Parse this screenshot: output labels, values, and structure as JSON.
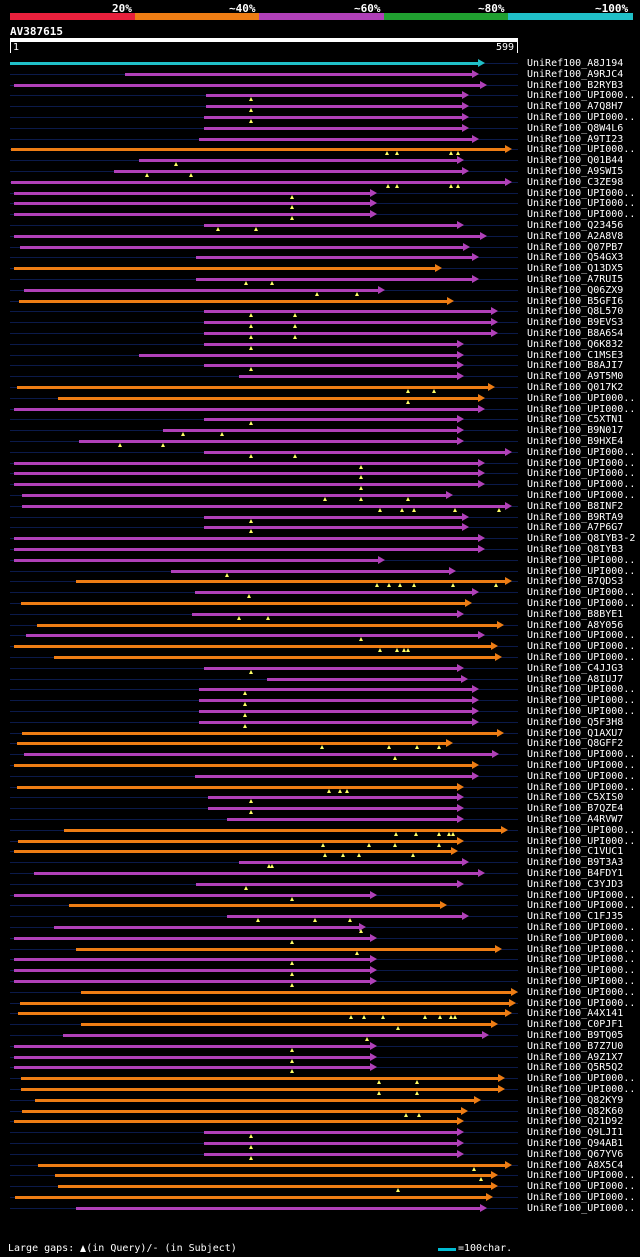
{
  "colors": {
    "red": "#e8203c",
    "orange": "#ee7d14",
    "purple": "#b040b8",
    "green": "#20a030",
    "cyan": "#20c0c8",
    "gap": "#ffff66",
    "axis": "#0b1a4a"
  },
  "scale": {
    "labels": [
      "20%",
      "~40%",
      "~60%",
      "~80%",
      "~100%"
    ],
    "colors": [
      "#e8203c",
      "#ee7d14",
      "#b040b8",
      "#20a030",
      "#20c0c8"
    ]
  },
  "query": {
    "name": "AV387615",
    "start": "1",
    "end": "599",
    "length": 599
  },
  "alignments": [
    {
      "label": "UniRef100_A8J194",
      "c": "cyan",
      "s": 1,
      "e": 560,
      "g": []
    },
    {
      "label": "UniRef100_A9RJC4",
      "c": "purple",
      "s": 136,
      "e": 553,
      "g": []
    },
    {
      "label": "UniRef100_B2RYB3",
      "c": "purple",
      "s": 6,
      "e": 563,
      "g": []
    },
    {
      "label": "UniRef100_UPI000..",
      "c": "purple",
      "s": 232,
      "e": 541,
      "g": [
        285
      ]
    },
    {
      "label": "UniRef100_A7Q8H7",
      "c": "purple",
      "s": 232,
      "e": 541,
      "g": [
        285
      ]
    },
    {
      "label": "UniRef100_UPI000..",
      "c": "purple",
      "s": 229,
      "e": 541,
      "g": [
        285
      ]
    },
    {
      "label": "UniRef100_Q8W4L6",
      "c": "purple",
      "s": 229,
      "e": 541,
      "g": []
    },
    {
      "label": "UniRef100_A9TI23",
      "c": "purple",
      "s": 224,
      "e": 553,
      "g": []
    },
    {
      "label": "UniRef100_UPI000..",
      "c": "orange",
      "s": 2,
      "e": 592,
      "g": [
        445,
        456,
        520,
        528
      ]
    },
    {
      "label": "UniRef100_Q01B44",
      "c": "purple",
      "s": 153,
      "e": 536,
      "g": [
        196
      ]
    },
    {
      "label": "UniRef100_A9SWI5",
      "c": "purple",
      "s": 124,
      "e": 541,
      "g": [
        162,
        214
      ]
    },
    {
      "label": "UniRef100_C3ZE98",
      "c": "purple",
      "s": 2,
      "e": 592,
      "g": [
        446,
        456,
        520,
        528
      ]
    },
    {
      "label": "UniRef100_UPI000..",
      "c": "purple",
      "s": 6,
      "e": 433,
      "g": [
        333
      ]
    },
    {
      "label": "UniRef100_UPI000..",
      "c": "purple",
      "s": 6,
      "e": 433,
      "g": [
        333
      ]
    },
    {
      "label": "UniRef100_UPI000..",
      "c": "purple",
      "s": 6,
      "e": 433,
      "g": [
        333
      ]
    },
    {
      "label": "UniRef100_Q23456",
      "c": "purple",
      "s": 229,
      "e": 536,
      "g": [
        246,
        290
      ]
    },
    {
      "label": "UniRef100_A2A8V8",
      "c": "purple",
      "s": 6,
      "e": 563,
      "g": []
    },
    {
      "label": "UniRef100_Q07PB7",
      "c": "purple",
      "s": 13,
      "e": 543,
      "g": []
    },
    {
      "label": "UniRef100_Q54GX3",
      "c": "purple",
      "s": 220,
      "e": 553,
      "g": []
    },
    {
      "label": "UniRef100_Q13DX5",
      "c": "orange",
      "s": 6,
      "e": 510,
      "g": []
    },
    {
      "label": "UniRef100_A7RUI5",
      "c": "purple",
      "s": 220,
      "e": 553,
      "g": [
        279,
        310
      ]
    },
    {
      "label": "UniRef100_Q06ZX9",
      "c": "purple",
      "s": 17,
      "e": 443,
      "g": [
        362,
        410
      ]
    },
    {
      "label": "UniRef100_B5GFI6",
      "c": "orange",
      "s": 12,
      "e": 524,
      "g": []
    },
    {
      "label": "UniRef100_Q8L570",
      "c": "purple",
      "s": 229,
      "e": 576,
      "g": [
        285,
        336
      ]
    },
    {
      "label": "UniRef100_B9EVS3",
      "c": "purple",
      "s": 229,
      "e": 576,
      "g": [
        285,
        336
      ]
    },
    {
      "label": "UniRef100_B8A6S4",
      "c": "purple",
      "s": 229,
      "e": 576,
      "g": [
        285,
        336
      ]
    },
    {
      "label": "UniRef100_Q6K832",
      "c": "purple",
      "s": 229,
      "e": 536,
      "g": [
        285
      ]
    },
    {
      "label": "UniRef100_C1MSE3",
      "c": "purple",
      "s": 153,
      "e": 536,
      "g": []
    },
    {
      "label": "UniRef100_B8AJI7",
      "c": "purple",
      "s": 229,
      "e": 536,
      "g": [
        285
      ]
    },
    {
      "label": "UniRef100_A9T5M0",
      "c": "purple",
      "s": 270,
      "e": 536,
      "g": []
    },
    {
      "label": "UniRef100_Q017K2",
      "c": "orange",
      "s": 9,
      "e": 572,
      "g": [
        470,
        500
      ]
    },
    {
      "label": "UniRef100_UPI000..",
      "c": "orange",
      "s": 57,
      "e": 560,
      "g": [
        470
      ]
    },
    {
      "label": "UniRef100_UPI000..",
      "c": "purple",
      "s": 6,
      "e": 560,
      "g": []
    },
    {
      "label": "UniRef100_C5XTN1",
      "c": "purple",
      "s": 229,
      "e": 536,
      "g": [
        285
      ]
    },
    {
      "label": "UniRef100_B9N017",
      "c": "purple",
      "s": 181,
      "e": 536,
      "g": [
        205,
        251
      ]
    },
    {
      "label": "UniRef100_B9HXE4",
      "c": "purple",
      "s": 82,
      "e": 536,
      "g": [
        130,
        181
      ]
    },
    {
      "label": "UniRef100_UPI000..",
      "c": "purple",
      "s": 229,
      "e": 592,
      "g": [
        285,
        336
      ]
    },
    {
      "label": "UniRef100_UPI000..",
      "c": "purple",
      "s": 6,
      "e": 560,
      "g": [
        414
      ]
    },
    {
      "label": "UniRef100_UPI000..",
      "c": "purple",
      "s": 6,
      "e": 560,
      "g": [
        414
      ]
    },
    {
      "label": "UniRef100_UPI000..",
      "c": "purple",
      "s": 6,
      "e": 560,
      "g": [
        414
      ]
    },
    {
      "label": "UniRef100_UPI000..",
      "c": "purple",
      "s": 15,
      "e": 522,
      "g": [
        372,
        414,
        470
      ]
    },
    {
      "label": "UniRef100_B8INF2",
      "c": "purple",
      "s": 15,
      "e": 592,
      "g": [
        437,
        462,
        477,
        525,
        577
      ]
    },
    {
      "label": "UniRef100_B9RTA9",
      "c": "purple",
      "s": 229,
      "e": 541,
      "g": [
        285
      ]
    },
    {
      "label": "UniRef100_A7P6G7",
      "c": "purple",
      "s": 229,
      "e": 541,
      "g": [
        285
      ]
    },
    {
      "label": "UniRef100_Q8IYB3-2",
      "c": "purple",
      "s": 6,
      "e": 560,
      "g": []
    },
    {
      "label": "UniRef100_Q8IYB3",
      "c": "purple",
      "s": 6,
      "e": 560,
      "g": []
    },
    {
      "label": "UniRef100_UPI000..",
      "c": "purple",
      "s": 6,
      "e": 443,
      "g": []
    },
    {
      "label": "UniRef100_UPI000..",
      "c": "purple",
      "s": 190,
      "e": 526,
      "g": [
        257
      ]
    },
    {
      "label": "UniRef100_B7QDS3",
      "c": "orange",
      "s": 79,
      "e": 592,
      "g": [
        433,
        447,
        460,
        477,
        523,
        573
      ]
    },
    {
      "label": "UniRef100_UPI000..",
      "c": "purple",
      "s": 219,
      "e": 553,
      "g": [
        282
      ]
    },
    {
      "label": "UniRef100_UPI000..",
      "c": "orange",
      "s": 14,
      "e": 545,
      "g": []
    },
    {
      "label": "UniRef100_B8BYE1",
      "c": "purple",
      "s": 215,
      "e": 536,
      "g": [
        271,
        305
      ]
    },
    {
      "label": "UniRef100_A8Y056",
      "c": "orange",
      "s": 33,
      "e": 582,
      "g": []
    },
    {
      "label": "UniRef100_UPI000..",
      "c": "purple",
      "s": 20,
      "e": 560,
      "g": [
        414
      ]
    },
    {
      "label": "UniRef100_UPI000..",
      "c": "orange",
      "s": 6,
      "e": 575,
      "g": [
        436,
        457,
        465,
        470
      ]
    },
    {
      "label": "UniRef100_UPI000..",
      "c": "orange",
      "s": 53,
      "e": 580,
      "g": []
    },
    {
      "label": "UniRef100_C4JJG3",
      "c": "purple",
      "s": 229,
      "e": 536,
      "g": [
        285
      ]
    },
    {
      "label": "UniRef100_A8IUJ7",
      "c": "purple",
      "s": 303,
      "e": 540,
      "g": []
    },
    {
      "label": "UniRef100_UPI000..",
      "c": "purple",
      "s": 224,
      "e": 553,
      "g": [
        278
      ]
    },
    {
      "label": "UniRef100_UPI000..",
      "c": "purple",
      "s": 224,
      "e": 553,
      "g": [
        278
      ]
    },
    {
      "label": "UniRef100_UPI000..",
      "c": "purple",
      "s": 224,
      "e": 553,
      "g": [
        278
      ]
    },
    {
      "label": "UniRef100_Q5F3H8",
      "c": "purple",
      "s": 224,
      "e": 553,
      "g": [
        278
      ]
    },
    {
      "label": "UniRef100_Q1AXU7",
      "c": "orange",
      "s": 15,
      "e": 582,
      "g": []
    },
    {
      "label": "UniRef100_Q8GFF2",
      "c": "orange",
      "s": 9,
      "e": 522,
      "g": [
        368,
        447,
        480,
        506
      ]
    },
    {
      "label": "UniRef100_UPI000..",
      "c": "purple",
      "s": 18,
      "e": 577,
      "g": [
        454
      ]
    },
    {
      "label": "UniRef100_UPI000..",
      "c": "orange",
      "s": 6,
      "e": 553,
      "g": []
    },
    {
      "label": "UniRef100_UPI000..",
      "c": "purple",
      "s": 219,
      "e": 553,
      "g": []
    },
    {
      "label": "UniRef100_UPI000..",
      "c": "orange",
      "s": 9,
      "e": 536,
      "g": [
        377,
        390,
        398
      ]
    },
    {
      "label": "UniRef100_C5XIS0",
      "c": "purple",
      "s": 234,
      "e": 536,
      "g": [
        285
      ]
    },
    {
      "label": "UniRef100_B7QZE4",
      "c": "purple",
      "s": 234,
      "e": 536,
      "g": [
        285
      ]
    },
    {
      "label": "UniRef100_A4RVW7",
      "c": "purple",
      "s": 257,
      "e": 536,
      "g": []
    },
    {
      "label": "UniRef100_UPI000..",
      "c": "orange",
      "s": 65,
      "e": 587,
      "g": [
        455,
        479,
        506,
        518,
        523
      ]
    },
    {
      "label": "UniRef100_UPI000..",
      "c": "orange",
      "s": 11,
      "e": 535,
      "g": [
        370,
        424,
        454,
        506
      ]
    },
    {
      "label": "UniRef100_C1VUC1",
      "c": "orange",
      "s": 6,
      "e": 528,
      "g": [
        372,
        393,
        412,
        475
      ]
    },
    {
      "label": "UniRef100_B9T3A3",
      "c": "purple",
      "s": 270,
      "e": 541,
      "g": [
        306,
        309
      ]
    },
    {
      "label": "UniRef100_B4FDY1",
      "c": "purple",
      "s": 29,
      "e": 560,
      "g": []
    },
    {
      "label": "UniRef100_C3YJD3",
      "c": "purple",
      "s": 220,
      "e": 536,
      "g": [
        279
      ]
    },
    {
      "label": "UniRef100_UPI000..",
      "c": "purple",
      "s": 6,
      "e": 433,
      "g": [
        333
      ]
    },
    {
      "label": "UniRef100_UPI000..",
      "c": "orange",
      "s": 70,
      "e": 516,
      "g": []
    },
    {
      "label": "UniRef100_C1FJ35",
      "c": "purple",
      "s": 257,
      "e": 541,
      "g": [
        293,
        360,
        401
      ]
    },
    {
      "label": "UniRef100_UPI000..",
      "c": "purple",
      "s": 53,
      "e": 420,
      "g": [
        414
      ]
    },
    {
      "label": "UniRef100_UPI000..",
      "c": "purple",
      "s": 6,
      "e": 433,
      "g": [
        333
      ]
    },
    {
      "label": "UniRef100_UPI000..",
      "c": "orange",
      "s": 79,
      "e": 580,
      "g": [
        410
      ]
    },
    {
      "label": "UniRef100_UPI000..",
      "c": "purple",
      "s": 6,
      "e": 433,
      "g": [
        333
      ]
    },
    {
      "label": "UniRef100_UPI000..",
      "c": "purple",
      "s": 6,
      "e": 433,
      "g": [
        333
      ]
    },
    {
      "label": "UniRef100_UPI000..",
      "c": "purple",
      "s": 6,
      "e": 433,
      "g": [
        333
      ]
    },
    {
      "label": "UniRef100_UPI000..",
      "c": "orange",
      "s": 85,
      "e": 599,
      "g": []
    },
    {
      "label": "UniRef100_UPI000..",
      "c": "orange",
      "s": 13,
      "e": 597,
      "g": []
    },
    {
      "label": "UniRef100_A4X141",
      "c": "orange",
      "s": 11,
      "e": 592,
      "g": [
        402,
        418,
        440,
        489,
        507,
        520,
        525
      ]
    },
    {
      "label": "UniRef100_C0PJF1",
      "c": "orange",
      "s": 85,
      "e": 575,
      "g": [
        458
      ]
    },
    {
      "label": "UniRef100_B9TQ05",
      "c": "purple",
      "s": 63,
      "e": 565,
      "g": [
        421
      ]
    },
    {
      "label": "UniRef100_B7Z7U0",
      "c": "purple",
      "s": 6,
      "e": 433,
      "g": [
        333
      ]
    },
    {
      "label": "UniRef100_A9Z1X7",
      "c": "purple",
      "s": 6,
      "e": 433,
      "g": [
        333
      ]
    },
    {
      "label": "UniRef100_Q5R5Q2",
      "c": "purple",
      "s": 6,
      "e": 433,
      "g": [
        333
      ]
    },
    {
      "label": "UniRef100_UPI000..",
      "c": "orange",
      "s": 14,
      "e": 584,
      "g": [
        435,
        480
      ]
    },
    {
      "label": "UniRef100_UPI000..",
      "c": "orange",
      "s": 14,
      "e": 584,
      "g": [
        435,
        480
      ]
    },
    {
      "label": "UniRef100_Q82KY9",
      "c": "orange",
      "s": 30,
      "e": 555,
      "g": []
    },
    {
      "label": "UniRef100_Q82K60",
      "c": "orange",
      "s": 15,
      "e": 540,
      "g": [
        467,
        482
      ]
    },
    {
      "label": "UniRef100_Q21D92",
      "c": "orange",
      "s": 6,
      "e": 536,
      "g": []
    },
    {
      "label": "UniRef100_Q9LJI1",
      "c": "purple",
      "s": 229,
      "e": 536,
      "g": [
        285
      ]
    },
    {
      "label": "UniRef100_Q94AB1",
      "c": "purple",
      "s": 229,
      "e": 536,
      "g": [
        285
      ]
    },
    {
      "label": "UniRef100_Q67YV6",
      "c": "purple",
      "s": 229,
      "e": 536,
      "g": [
        285
      ]
    },
    {
      "label": "UniRef100_A8X5C4",
      "c": "orange",
      "s": 34,
      "e": 592,
      "g": [
        547
      ]
    },
    {
      "label": "UniRef100_UPI000..",
      "c": "orange",
      "s": 54,
      "e": 575,
      "g": [
        555
      ]
    },
    {
      "label": "UniRef100_UPI000..",
      "c": "orange",
      "s": 57,
      "e": 575,
      "g": [
        458
      ]
    },
    {
      "label": "UniRef100_UPI000..",
      "c": "orange",
      "s": 7,
      "e": 570,
      "g": []
    },
    {
      "label": "UniRef100_UPI000..",
      "c": "purple",
      "s": 79,
      "e": 563,
      "g": []
    }
  ],
  "footer": {
    "legend": "Large gaps: ",
    "in_query": "(in Query)/",
    "dash": "-",
    "in_subject": " (in Subject)",
    "scale_text": "=100char."
  }
}
